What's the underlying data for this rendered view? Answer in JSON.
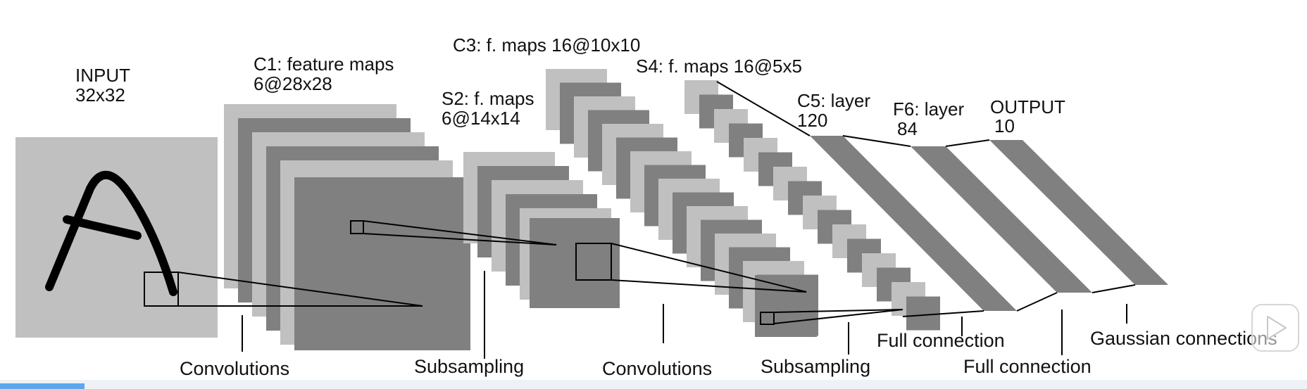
{
  "layers": {
    "input": {
      "title": "INPUT",
      "size": "32x32"
    },
    "c1": {
      "title": "C1: feature maps",
      "size": "6@28x28"
    },
    "s2": {
      "title": "S2: f. maps",
      "size": "6@14x14"
    },
    "c3": {
      "title": "C3: f. maps 16@10x10"
    },
    "s4": {
      "title": "S4: f. maps 16@5x5"
    },
    "c5": {
      "title": "C5: layer",
      "size": "120"
    },
    "f6": {
      "title": "F6: layer",
      "size": "84"
    },
    "output": {
      "title": "OUTPUT",
      "size": "10"
    }
  },
  "operations": {
    "op1": "Convolutions",
    "op2": "Subsampling",
    "op3": "Convolutions",
    "op4": "Subsampling",
    "op5": "Full connection",
    "op6": "Full connection",
    "op7": "Gaussian connections"
  },
  "colors": {
    "map_dark": "#808080",
    "map_light": "#c0c0c0",
    "background": "#ffffff"
  },
  "icons": {
    "play_overlay": "play-icon"
  }
}
